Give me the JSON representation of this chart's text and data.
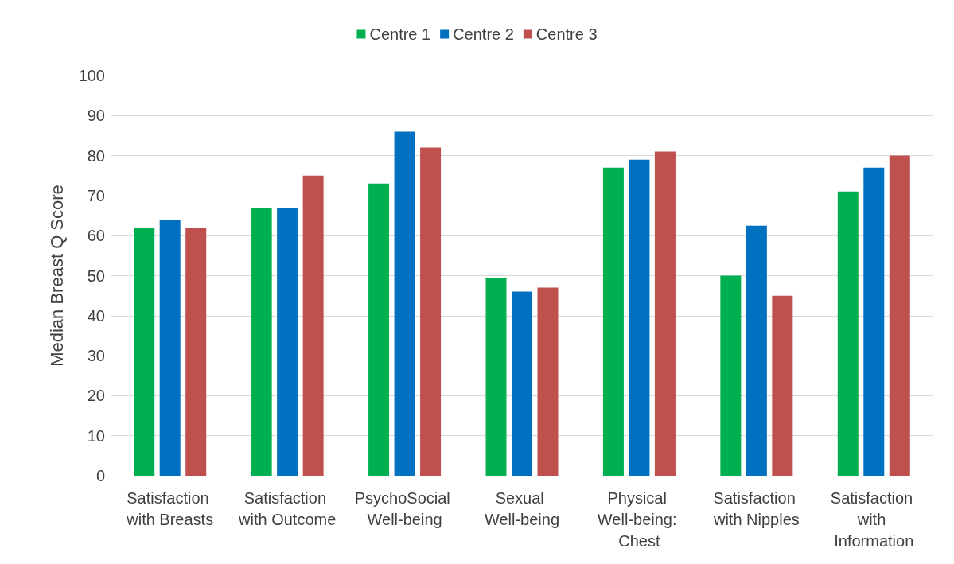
{
  "chart_data": {
    "type": "bar",
    "ylabel": "Median Breast Q Score",
    "categories": [
      "Satisfaction with Breasts",
      "Satisfaction with Outcome",
      "PsychoSocial Well-being",
      "Sexual Well-being",
      "Physical Well-being: Chest",
      "Satisfaction with Nipples",
      "Satisfaction with Information"
    ],
    "series": [
      {
        "name": "Centre 1",
        "color": "#00b050",
        "values": [
          62,
          67,
          73,
          49.5,
          77,
          50,
          71
        ]
      },
      {
        "name": "Centre 2",
        "color": "#0070c0",
        "values": [
          64,
          67,
          86,
          46,
          79,
          62.5,
          77
        ]
      },
      {
        "name": "Centre 3",
        "color": "#c0504d",
        "values": [
          62,
          75,
          82,
          47,
          81,
          45,
          80
        ]
      }
    ],
    "ylim": [
      0,
      100
    ],
    "yticks": [
      0,
      10,
      20,
      30,
      40,
      50,
      60,
      70,
      80,
      90,
      100
    ],
    "grid": "y",
    "legend": "top"
  }
}
